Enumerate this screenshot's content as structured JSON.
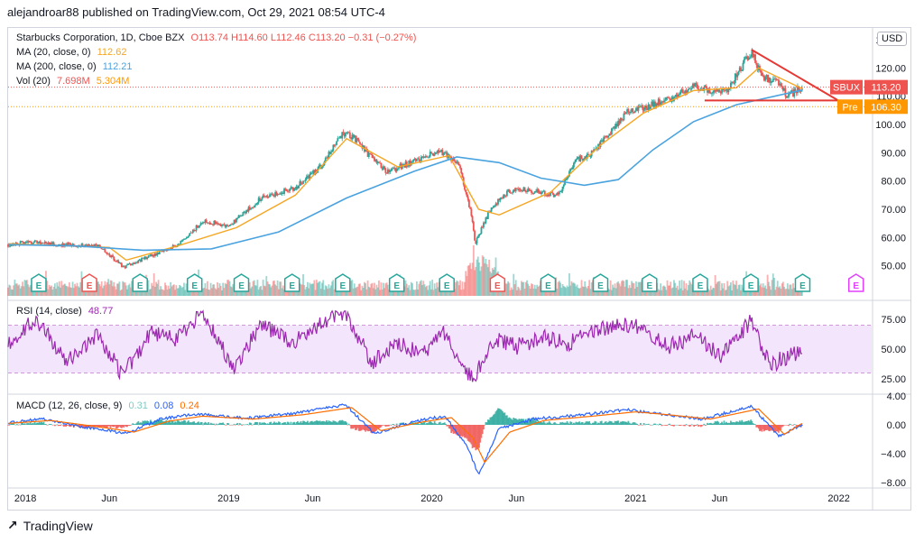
{
  "publisher": "alejandroar88 published on TradingView.com, Oct 29, 2021 08:54 UTC-4",
  "brand": "TradingView",
  "currency_button": "USD",
  "legend": {
    "symbol": "Starbucks Corporation, 1D, Cboe BZX",
    "ohlc": "O113.74  H114.60  L112.46  C113.20  −0.31 (−0.27%)",
    "ma20_label": "MA (20, close, 0)",
    "ma20_value": "112.62",
    "ma200_label": "MA (200, close, 0)",
    "ma200_value": "112.21",
    "vol_label": "Vol (20)",
    "vol_value": "7.698M",
    "vol_ma_value": "5.304M",
    "rsi_label": "RSI (14, close)",
    "rsi_value": "48.77",
    "macd_label": "MACD (12, 26, close, 9)",
    "macd_hist": "0.31",
    "macd_line": "0.08",
    "macd_signal": "0.24"
  },
  "price_tags": {
    "last_symbol": "SBUX",
    "last_value": "113.20",
    "pre_label": "Pre",
    "pre_value": "106.30"
  },
  "colors": {
    "up": "#26a69a",
    "down": "#ef5350",
    "ma20": "#f5a623",
    "ma200": "#4aa3df",
    "rsi": "#9c27b0",
    "rsi_band": "#f3e5fb",
    "macd": "#2962ff",
    "signal": "#ff6d00",
    "triangle": "#e53935",
    "pre": "#ff9800"
  },
  "x_axis_labels": [
    "2018",
    "Jun",
    "2019",
    "Jun",
    "2020",
    "Jun",
    "2021",
    "Jun",
    "2022"
  ],
  "earnings_markers": [
    {
      "date": "2018-01-25",
      "letter": "E",
      "type": "beat"
    },
    {
      "date": "2018-04-26",
      "letter": "E",
      "type": "miss"
    },
    {
      "date": "2018-07-26",
      "letter": "E",
      "type": "beat"
    },
    {
      "date": "2018-11-01",
      "letter": "E",
      "type": "beat"
    },
    {
      "date": "2019-01-24",
      "letter": "E",
      "type": "beat"
    },
    {
      "date": "2019-04-25",
      "letter": "E",
      "type": "beat"
    },
    {
      "date": "2019-07-25",
      "letter": "E",
      "type": "beat"
    },
    {
      "date": "2019-10-30",
      "letter": "E",
      "type": "beat"
    },
    {
      "date": "2020-01-28",
      "letter": "E",
      "type": "beat"
    },
    {
      "date": "2020-04-28",
      "letter": "E",
      "type": "miss"
    },
    {
      "date": "2020-07-28",
      "letter": "E",
      "type": "beat"
    },
    {
      "date": "2020-10-30",
      "letter": "E",
      "type": "beat"
    },
    {
      "date": "2021-01-26",
      "letter": "E",
      "type": "beat"
    },
    {
      "date": "2021-04-27",
      "letter": "E",
      "type": "beat"
    },
    {
      "date": "2021-07-27",
      "letter": "E",
      "type": "beat"
    },
    {
      "date": "2021-10-28",
      "letter": "E",
      "type": "beat"
    },
    {
      "date": "2022-02-01",
      "letter": "E",
      "type": "future"
    }
  ],
  "chart_data": [
    {
      "type": "candlestick",
      "title": "Starbucks Corporation, 1D, Cboe BZX",
      "y_axis_ticks": [
        "50.00",
        "60.00",
        "70.00",
        "80.00",
        "90.00",
        "100.00",
        "110.00",
        "120.00",
        "130.00"
      ],
      "ylim": [
        40,
        130
      ],
      "x_range": [
        "2017-12-01",
        "2022-03-01"
      ],
      "series": [
        {
          "name": "Close",
          "x": [
            "2017-12-01",
            "2018-01-15",
            "2018-03-01",
            "2018-05-15",
            "2018-06-25",
            "2018-08-01",
            "2018-09-15",
            "2018-10-15",
            "2018-11-15",
            "2019-01-01",
            "2019-03-01",
            "2019-04-30",
            "2019-06-15",
            "2019-07-26",
            "2019-08-15",
            "2019-09-15",
            "2019-10-15",
            "2019-11-15",
            "2019-12-15",
            "2020-01-15",
            "2020-02-20",
            "2020-03-12",
            "2020-03-19",
            "2020-04-15",
            "2020-05-15",
            "2020-06-15",
            "2020-07-15",
            "2020-08-15",
            "2020-09-15",
            "2020-10-15",
            "2020-11-15",
            "2020-12-15",
            "2021-01-15",
            "2021-02-15",
            "2021-03-15",
            "2021-04-15",
            "2021-05-15",
            "2021-06-15",
            "2021-07-28",
            "2021-08-15",
            "2021-09-15",
            "2021-10-01",
            "2021-10-28"
          ],
          "values": [
            57.5,
            58.5,
            57.5,
            57.0,
            49.5,
            52.5,
            56.0,
            59.0,
            66.0,
            64.0,
            74.0,
            77.5,
            85.0,
            97.0,
            95.0,
            88.0,
            83.0,
            86.0,
            88.0,
            91.0,
            85.0,
            68.0,
            58.0,
            70.0,
            76.0,
            77.0,
            76.0,
            75.0,
            87.0,
            90.0,
            97.0,
            104.0,
            106.0,
            108.0,
            110.0,
            114.0,
            112.0,
            112.0,
            126.0,
            117.0,
            115.0,
            110.0,
            113.2
          ]
        },
        {
          "name": "MA (20, close, 0)",
          "x": [
            "2017-12-01",
            "2018-06-01",
            "2018-07-01",
            "2018-10-01",
            "2019-01-15",
            "2019-05-01",
            "2019-08-01",
            "2019-11-01",
            "2020-02-01",
            "2020-03-25",
            "2020-05-01",
            "2020-08-01",
            "2020-11-01",
            "2021-01-15",
            "2021-04-15",
            "2021-07-01",
            "2021-08-10",
            "2021-10-28"
          ],
          "values": [
            57.8,
            56.5,
            52.0,
            57.0,
            63.5,
            75.0,
            95.0,
            85.0,
            89.0,
            70.0,
            68.0,
            76.0,
            93.0,
            104.0,
            112.0,
            113.0,
            120.0,
            112.62
          ]
        },
        {
          "name": "MA (200, close, 0)",
          "x": [
            "2017-12-01",
            "2018-04-01",
            "2018-08-01",
            "2018-12-01",
            "2019-04-01",
            "2019-08-01",
            "2019-12-01",
            "2020-02-15",
            "2020-05-01",
            "2020-07-15",
            "2020-10-01",
            "2020-12-01",
            "2021-02-01",
            "2021-04-15",
            "2021-07-01",
            "2021-10-28"
          ],
          "values": [
            57.5,
            57.0,
            55.5,
            56.0,
            62.0,
            74.0,
            83.5,
            88.5,
            86.5,
            81.0,
            78.5,
            80.5,
            91.0,
            101.0,
            107.0,
            112.21
          ]
        }
      ],
      "annotations": {
        "triangle_top": [
          {
            "x": "2021-07-28",
            "y": 126.5
          },
          {
            "x": "2021-12-31",
            "y": 108.5
          }
        ],
        "triangle_base": [
          {
            "x": "2021-05-05",
            "y": 108.5
          },
          {
            "x": "2021-12-31",
            "y": 108.5
          }
        ],
        "last_price": 113.2,
        "pre_market_price": 106.3
      },
      "grid": false,
      "legend": "top-left"
    },
    {
      "type": "line",
      "title": "RSI (14, close)",
      "y_axis_ticks": [
        "25.00",
        "50.00",
        "75.00"
      ],
      "ylim": [
        20,
        80
      ],
      "bands": [
        30,
        70
      ],
      "series": [
        {
          "name": "RSI (14, close)",
          "x": [
            "2017-12-01",
            "2018-01-20",
            "2018-03-15",
            "2018-05-10",
            "2018-06-25",
            "2018-08-15",
            "2018-10-01",
            "2018-11-15",
            "2019-01-10",
            "2019-03-01",
            "2019-04-25",
            "2019-06-15",
            "2019-07-30",
            "2019-09-15",
            "2019-10-30",
            "2019-12-15",
            "2020-01-20",
            "2020-03-05",
            "2020-03-20",
            "2020-04-20",
            "2020-06-01",
            "2020-07-20",
            "2020-09-01",
            "2020-10-15",
            "2020-12-01",
            "2021-01-15",
            "2021-03-01",
            "2021-04-20",
            "2021-06-01",
            "2021-07-29",
            "2021-08-30",
            "2021-09-30",
            "2021-10-28"
          ],
          "values": [
            55,
            75,
            40,
            62,
            28,
            64,
            58,
            80,
            35,
            70,
            55,
            72,
            82,
            38,
            55,
            45,
            66,
            30,
            28,
            58,
            52,
            60,
            55,
            64,
            72,
            68,
            52,
            62,
            44,
            74,
            36,
            44,
            48.77
          ]
        }
      ]
    },
    {
      "type": "line",
      "title": "MACD (12, 26, close, 9)",
      "y_axis_ticks": [
        "4.00",
        "0.00",
        "−4.00",
        "−8.00"
      ],
      "ylim": [
        -8.5,
        4.5
      ],
      "series": [
        {
          "name": "MACD",
          "x": [
            "2017-12-01",
            "2018-02-01",
            "2018-05-01",
            "2018-07-01",
            "2018-09-01",
            "2018-11-01",
            "2019-02-01",
            "2019-05-01",
            "2019-07-30",
            "2019-09-20",
            "2019-12-01",
            "2020-01-25",
            "2020-03-05",
            "2020-03-25",
            "2020-05-01",
            "2020-07-01",
            "2020-10-01",
            "2020-12-15",
            "2021-02-15",
            "2021-05-01",
            "2021-07-28",
            "2021-09-15",
            "2021-10-28"
          ],
          "values": [
            0.3,
            0.8,
            -0.5,
            -1.2,
            0.8,
            1.5,
            0.9,
            1.6,
            2.8,
            -1.2,
            0.5,
            1.2,
            -3.0,
            -7.0,
            -0.5,
            0.8,
            1.4,
            2.1,
            1.5,
            0.8,
            2.6,
            -1.6,
            0.08
          ]
        },
        {
          "name": "Signal",
          "x": [
            "2017-12-01",
            "2018-02-15",
            "2018-05-15",
            "2018-07-15",
            "2018-09-15",
            "2018-11-15",
            "2019-02-15",
            "2019-05-15",
            "2019-08-10",
            "2019-10-01",
            "2019-12-15",
            "2020-02-05",
            "2020-03-15",
            "2020-04-05",
            "2020-05-20",
            "2020-07-20",
            "2020-10-15",
            "2021-01-01",
            "2021-03-01",
            "2021-05-15",
            "2021-08-10",
            "2021-09-25",
            "2021-10-28"
          ],
          "values": [
            0.2,
            0.6,
            -0.3,
            -1.0,
            0.5,
            1.2,
            0.8,
            1.4,
            2.4,
            -0.8,
            0.4,
            1.0,
            -1.8,
            -5.2,
            -1.0,
            0.6,
            1.2,
            1.8,
            1.4,
            0.8,
            2.2,
            -1.3,
            0.24
          ]
        }
      ]
    }
  ]
}
